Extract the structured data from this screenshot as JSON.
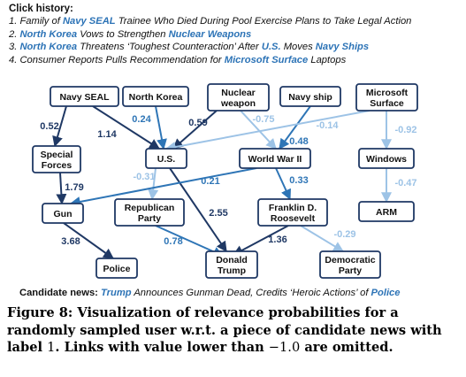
{
  "click_history": {
    "header": "Click history:",
    "items": [
      [
        {
          "t": "1. Family of "
        },
        {
          "t": "Navy SEAL",
          "hl": true
        },
        {
          "t": " Trainee Who Died During Pool Exercise Plans to Take Legal Action"
        }
      ],
      [
        {
          "t": "2. "
        },
        {
          "t": "North Korea",
          "hl": true
        },
        {
          "t": " Vows to Strengthen "
        },
        {
          "t": "Nuclear Weapons",
          "hl": true
        }
      ],
      [
        {
          "t": "3. "
        },
        {
          "t": "North Korea",
          "hl": true
        },
        {
          "t": " Threatens ‘Toughest Counteraction’ After "
        },
        {
          "t": "U.S.",
          "hl": true
        },
        {
          "t": " Moves "
        },
        {
          "t": "Navy Ships",
          "hl": true
        }
      ],
      [
        {
          "t": "4. Consumer Reports Pulls Recommendation for "
        },
        {
          "t": "Microsoft Surface",
          "hl": true
        },
        {
          "t": " Laptops"
        }
      ]
    ]
  },
  "nodes": [
    {
      "id": "navy_seal",
      "lines": [
        "Navy SEAL"
      ]
    },
    {
      "id": "north_korea",
      "lines": [
        "North Korea"
      ]
    },
    {
      "id": "nuclear_weapon",
      "lines": [
        "Nuclear",
        "weapon"
      ]
    },
    {
      "id": "navy_ship",
      "lines": [
        "Navy ship"
      ]
    },
    {
      "id": "microsoft_surface",
      "lines": [
        "Microsoft",
        "Surface"
      ]
    },
    {
      "id": "special_forces",
      "lines": [
        "Special",
        "Forces"
      ]
    },
    {
      "id": "us",
      "lines": [
        "U.S."
      ]
    },
    {
      "id": "world_war_ii",
      "lines": [
        "World War II"
      ]
    },
    {
      "id": "windows",
      "lines": [
        "Windows"
      ]
    },
    {
      "id": "gun",
      "lines": [
        "Gun"
      ]
    },
    {
      "id": "republican_party",
      "lines": [
        "Republican",
        "Party"
      ]
    },
    {
      "id": "franklin_roosevelt",
      "lines": [
        "Franklin D.",
        "Roosevelt"
      ]
    },
    {
      "id": "arm",
      "lines": [
        "ARM"
      ]
    },
    {
      "id": "police",
      "lines": [
        "Police"
      ]
    },
    {
      "id": "donald_trump",
      "lines": [
        "Donald",
        "Trump"
      ]
    },
    {
      "id": "democratic_party",
      "lines": [
        "Democratic",
        "Party"
      ]
    }
  ],
  "edges": [
    {
      "from": "navy_seal",
      "to": "special_forces",
      "value": "0.52",
      "color": "#1f3864"
    },
    {
      "from": "navy_seal",
      "to": "us",
      "value": "1.14",
      "color": "#1f3864"
    },
    {
      "from": "north_korea",
      "to": "us",
      "value": "0.24",
      "color": "#2e75b6"
    },
    {
      "from": "nuclear_weapon",
      "to": "us",
      "value": "0.59",
      "color": "#1f3864"
    },
    {
      "from": "nuclear_weapon",
      "to": "world_war_ii",
      "value": "-0.75",
      "color": "#9dc3e6"
    },
    {
      "from": "navy_ship",
      "to": "world_war_ii",
      "value": "0.48",
      "color": "#2e75b6"
    },
    {
      "from": "microsoft_surface",
      "to": "us",
      "value": "-0.14",
      "color": "#9dc3e6"
    },
    {
      "from": "microsoft_surface",
      "to": "windows",
      "value": "-0.92",
      "color": "#9dc3e6"
    },
    {
      "from": "special_forces",
      "to": "gun",
      "value": "1.79",
      "color": "#1f3864"
    },
    {
      "from": "us",
      "to": "republican_party",
      "value": "-0.31",
      "color": "#9dc3e6"
    },
    {
      "from": "us",
      "to": "donald_trump",
      "value": "2.55",
      "color": "#1f3864"
    },
    {
      "from": "world_war_ii",
      "to": "gun",
      "value": "0.21",
      "color": "#2e75b6"
    },
    {
      "from": "world_war_ii",
      "to": "franklin_roosevelt",
      "value": "0.33",
      "color": "#2e75b6"
    },
    {
      "from": "windows",
      "to": "arm",
      "value": "-0.47",
      "color": "#9dc3e6"
    },
    {
      "from": "gun",
      "to": "police",
      "value": "3.68",
      "color": "#1f3864"
    },
    {
      "from": "republican_party",
      "to": "donald_trump",
      "value": "0.78",
      "color": "#2e75b6"
    },
    {
      "from": "franklin_roosevelt",
      "to": "donald_trump",
      "value": "1.36",
      "color": "#1f3864"
    },
    {
      "from": "franklin_roosevelt",
      "to": "democratic_party",
      "value": "-0.29",
      "color": "#9dc3e6"
    }
  ],
  "candidate": {
    "label": "Candidate news:",
    "parts": [
      {
        "t": " "
      },
      {
        "t": "Trump",
        "hl": true
      },
      {
        "t": " Announces Gunman Dead, Credits ‘Heroic Actions’ of "
      },
      {
        "t": "Police",
        "hl": true
      }
    ]
  },
  "caption": {
    "prefix": "Figure 8: Visualization of relevance probabilities for a randomly sampled user w.r.t. a piece of candidate news with label ",
    "label_value": "1",
    "middle": ". Links with value lower than ",
    "threshold": "−1.0",
    "suffix": " are omitted."
  },
  "colors": {
    "strong": "#1f3864",
    "medium": "#2e75b6",
    "light": "#9dc3e6",
    "highlight": "#2c73b6"
  }
}
